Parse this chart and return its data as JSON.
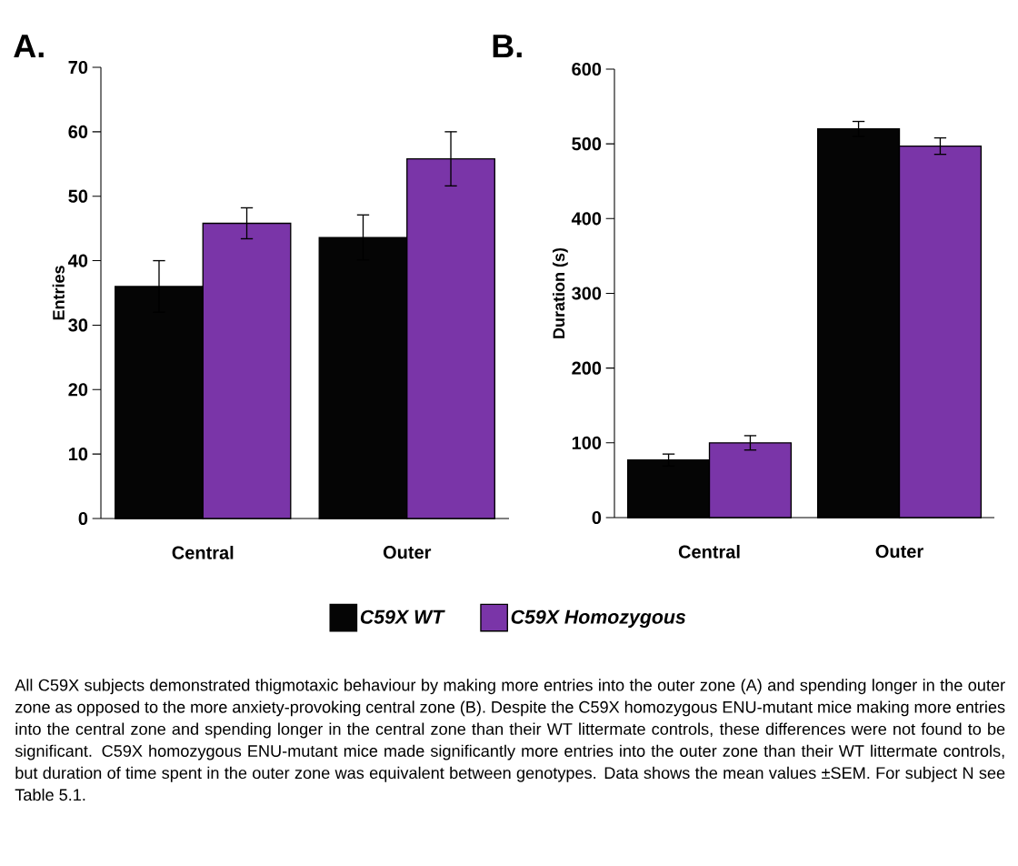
{
  "chart_data": [
    {
      "type": "bar",
      "categories": [
        "Central",
        "Outer"
      ],
      "ylabel": "Entries",
      "ylim": [
        0,
        70
      ],
      "yticks": [
        0,
        10,
        20,
        30,
        40,
        50,
        60,
        70
      ],
      "legend": "bottom",
      "series": [
        {
          "name": "C59X WT",
          "color": "#050505",
          "values": [
            36,
            43.6
          ],
          "errors": [
            4,
            3.5
          ]
        },
        {
          "name": "C59X Homozygous",
          "color": "#7a35a8",
          "values": [
            45.8,
            55.8
          ],
          "errors": [
            2.4,
            4.2
          ]
        }
      ],
      "annotations": [
        "A.",
        "All C59X subjects demonstrated thigmotaxic behaviour by making more entries into the outer zone (A) and spending longer in the outer zone as opposed to the more anxiety-provoking central zone (B). Despite the C59X homozygous ENU-mutant mice making more entries into the central zone and spending longer in the central zone than their WT littermate controls, these differences were not found to be significant. C59X homozygous ENU-mutant mice made significantly more entries into the outer zone than their WT littermate controls, but duration of time spent in the outer zone was equivalent between genotypes. Data shows the mean values ±SEM. For subject N see Table 5.1."
      ]
    },
    {
      "type": "bar",
      "categories": [
        "Central",
        "Outer"
      ],
      "ylabel": "Duration (s)",
      "ylim": [
        0,
        600
      ],
      "yticks": [
        0,
        100,
        200,
        300,
        400,
        500,
        600
      ],
      "series": [
        {
          "color": "#050505",
          "values": [
            77,
            520
          ],
          "errors": [
            8,
            10
          ]
        },
        {
          "color": "#7a35a8",
          "values": [
            100,
            497
          ],
          "errors": [
            9.6,
            11
          ]
        }
      ],
      "annotations": [
        "B."
      ]
    }
  ]
}
